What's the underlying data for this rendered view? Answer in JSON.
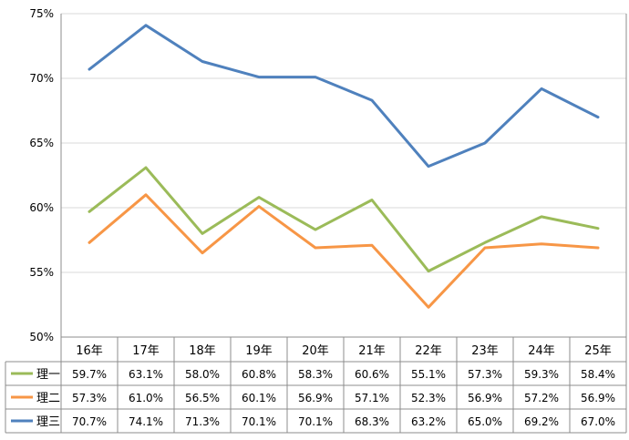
{
  "chart_data": {
    "type": "line",
    "categories": [
      "16年",
      "17年",
      "18年",
      "19年",
      "20年",
      "21年",
      "22年",
      "23年",
      "24年",
      "25年"
    ],
    "y_ticks": [
      "75%",
      "70%",
      "65%",
      "60%",
      "55%",
      "50%"
    ],
    "ylim": [
      50,
      75
    ],
    "grid": true,
    "legend": "data-table-left",
    "series": [
      {
        "name": "理一",
        "color": "#9BBB59",
        "values": [
          59.7,
          63.1,
          58.0,
          60.8,
          58.3,
          60.6,
          55.1,
          57.3,
          59.3,
          58.4
        ],
        "labels": [
          "59.7%",
          "63.1%",
          "58.0%",
          "60.8%",
          "58.3%",
          "60.6%",
          "55.1%",
          "57.3%",
          "59.3%",
          "58.4%"
        ]
      },
      {
        "name": "理二",
        "color": "#F79646",
        "values": [
          57.3,
          61.0,
          56.5,
          60.1,
          56.9,
          57.1,
          52.3,
          56.9,
          57.2,
          56.9
        ],
        "labels": [
          "57.3%",
          "61.0%",
          "56.5%",
          "60.1%",
          "56.9%",
          "57.1%",
          "52.3%",
          "56.9%",
          "57.2%",
          "56.9%"
        ]
      },
      {
        "name": "理三",
        "color": "#4F81BD",
        "values": [
          70.7,
          74.1,
          71.3,
          70.1,
          70.1,
          68.3,
          63.2,
          65.0,
          69.2,
          67.0
        ],
        "labels": [
          "70.7%",
          "74.1%",
          "71.3%",
          "70.1%",
          "70.1%",
          "68.3%",
          "63.2%",
          "65.0%",
          "69.2%",
          "67.0%"
        ]
      }
    ]
  }
}
